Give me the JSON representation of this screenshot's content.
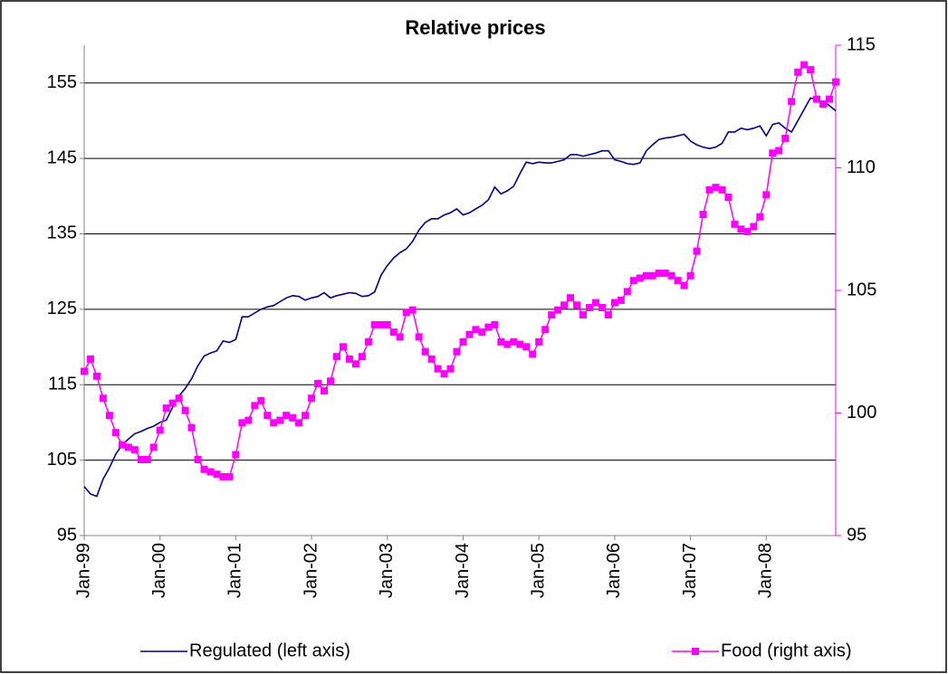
{
  "chart_data": {
    "type": "line",
    "title": "Relative prices",
    "categories": [
      "Jan-99",
      null,
      null,
      null,
      null,
      null,
      null,
      null,
      null,
      null,
      null,
      null,
      "Jan-00",
      null,
      null,
      null,
      null,
      null,
      null,
      null,
      null,
      null,
      null,
      null,
      "Jan-01",
      null,
      null,
      null,
      null,
      null,
      null,
      null,
      null,
      null,
      null,
      null,
      "Jan-02",
      null,
      null,
      null,
      null,
      null,
      null,
      null,
      null,
      null,
      null,
      null,
      "Jan-03",
      null,
      null,
      null,
      null,
      null,
      null,
      null,
      null,
      null,
      null,
      null,
      "Jan-04",
      null,
      null,
      null,
      null,
      null,
      null,
      null,
      null,
      null,
      null,
      null,
      "Jan-05",
      null,
      null,
      null,
      null,
      null,
      null,
      null,
      null,
      null,
      null,
      null,
      "Jan-06",
      null,
      null,
      null,
      null,
      null,
      null,
      null,
      null,
      null,
      null,
      null,
      "Jan-07",
      null,
      null,
      null,
      null,
      null,
      null,
      null,
      null,
      null,
      null,
      null,
      "Jan-08",
      null,
      null,
      null,
      null,
      null,
      null,
      null,
      null,
      null,
      null,
      null
    ],
    "series": [
      {
        "name": "Regulated (left axis)",
        "color": "#000080",
        "axis": "y",
        "marker": "none",
        "values": [
          101.5,
          100.5,
          100.2,
          102.5,
          104,
          105.8,
          107,
          107.8,
          108.5,
          108.8,
          109.2,
          109.5,
          110,
          110.3,
          112,
          113.5,
          114.5,
          115.8,
          117.5,
          118.8,
          119.2,
          119.5,
          120.8,
          120.6,
          121,
          124,
          124,
          124.5,
          125,
          125.3,
          125.5,
          126,
          126.5,
          126.8,
          126.7,
          126.2,
          126.5,
          126.7,
          127.2,
          126.5,
          126.8,
          127,
          127.2,
          127.1,
          126.7,
          126.8,
          127.3,
          129.5,
          130.8,
          131.8,
          132.5,
          133,
          134,
          135.5,
          136.5,
          137,
          137,
          137.5,
          137.8,
          138.3,
          137.5,
          137.8,
          138.3,
          138.8,
          139.5,
          141.2,
          140.3,
          140.7,
          141.3,
          143,
          144.5,
          144.3,
          144.5,
          144.4,
          144.4,
          144.6,
          144.8,
          145.5,
          145.5,
          145.3,
          145.5,
          145.7,
          146,
          146,
          144.8,
          144.6,
          144.3,
          144.2,
          144.4,
          146,
          146.8,
          147.5,
          147.7,
          147.8,
          148,
          148.2,
          147.3,
          146.8,
          146.5,
          146.3,
          146.5,
          147,
          148.5,
          148.5,
          149,
          148.8,
          149,
          149.3,
          148,
          149.5,
          149.7,
          149,
          148.5,
          150,
          151.5,
          153,
          152.8,
          152.5,
          152,
          151.3
        ]
      },
      {
        "name": "Food (right axis)",
        "color": "#ff00ff",
        "axis": "y2",
        "marker": "square",
        "values": [
          101.7,
          102.2,
          101.5,
          100.6,
          99.9,
          99.2,
          98.7,
          98.6,
          98.5,
          98.1,
          98.1,
          98.6,
          99.3,
          100.2,
          100.4,
          100.6,
          100.1,
          99.4,
          98.1,
          97.7,
          97.6,
          97.5,
          97.4,
          97.4,
          98.3,
          99.6,
          99.7,
          100.3,
          100.5,
          99.9,
          99.6,
          99.7,
          99.9,
          99.8,
          99.6,
          99.9,
          100.6,
          101.2,
          100.9,
          101.3,
          102.3,
          102.7,
          102.2,
          102,
          102.3,
          102.9,
          103.6,
          103.6,
          103.6,
          103.3,
          103.1,
          104.1,
          104.2,
          103.1,
          102.5,
          102.2,
          101.8,
          101.6,
          101.8,
          102.5,
          102.9,
          103.2,
          103.4,
          103.3,
          103.5,
          103.6,
          102.9,
          102.8,
          102.9,
          102.8,
          102.7,
          102.4,
          102.9,
          103.4,
          104,
          104.2,
          104.4,
          104.7,
          104.4,
          104,
          104.3,
          104.5,
          104.3,
          104,
          104.5,
          104.6,
          104.95,
          105.4,
          105.5,
          105.6,
          105.6,
          105.7,
          105.7,
          105.6,
          105.4,
          105.2,
          105.6,
          106.6,
          108.1,
          109.1,
          109.2,
          109.1,
          108.8,
          107.7,
          107.5,
          107.4,
          107.6,
          108,
          108.9,
          110.6,
          110.7,
          111.2,
          112.7,
          113.9,
          114.2,
          114,
          112.8,
          112.6,
          112.8,
          113.5
        ]
      }
    ],
    "ylim": [
      95,
      160
    ],
    "yticks": [
      95,
      105,
      115,
      125,
      135,
      145,
      155
    ],
    "y2lim": [
      95,
      115
    ],
    "y2ticks": [
      95,
      100,
      105,
      110,
      115
    ],
    "grid": true,
    "legend": "bottom"
  }
}
